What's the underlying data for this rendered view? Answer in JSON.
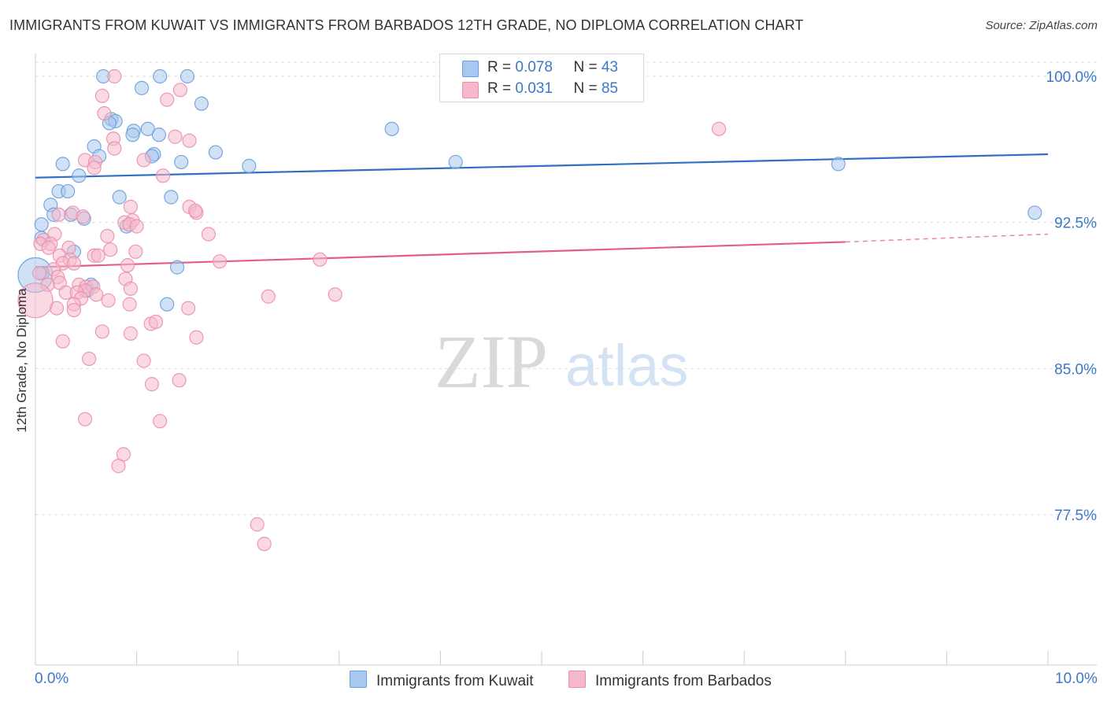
{
  "title": "IMMIGRANTS FROM KUWAIT VS IMMIGRANTS FROM BARBADOS 12TH GRADE, NO DIPLOMA CORRELATION CHART",
  "source": "Source: ZipAtlas.com",
  "watermark": {
    "zip": "ZIP",
    "atlas": "atlas"
  },
  "legend": {
    "kuwait": {
      "r_label": "R = ",
      "r_value": "0.078",
      "n_label": "N = ",
      "n_value": "43"
    },
    "barbados": {
      "r_label": "R = ",
      "r_value": "0.031",
      "n_label": "N = ",
      "n_value": "85"
    }
  },
  "colors": {
    "kuwait_fill": "#a9c8ef",
    "kuwait_stroke": "#6a9fdc",
    "kuwait_line": "#2f6fc4",
    "barbados_fill": "#f6b9cc",
    "barbados_stroke": "#ea8fac",
    "barbados_line": "#e0608b",
    "axis_label": "#3a78c9",
    "grid": "#dddddd"
  },
  "chart_data": {
    "type": "scatter",
    "xlabel": "",
    "ylabel": "12th Grade, No Diploma",
    "xlim": [
      0,
      10
    ],
    "ylim": [
      70.0,
      101.0
    ],
    "x_tick_labels": {
      "left": "0.0%",
      "right": "10.0%"
    },
    "y_ticks": [
      100.0,
      92.5,
      85.0,
      77.5
    ],
    "y_tick_labels": [
      "100.0%",
      "92.5%",
      "85.0%",
      "77.5%"
    ],
    "grid": true,
    "legend_position": "top-center",
    "series": [
      {
        "name": "Immigrants from Kuwait",
        "trend": {
          "x0": 0.0,
          "y0": 94.8,
          "x1": 10.0,
          "y1": 96.0
        },
        "points": [
          [
            0.67,
            100.0
          ],
          [
            1.23,
            100.0
          ],
          [
            1.5,
            100.0
          ],
          [
            1.05,
            99.4
          ],
          [
            1.64,
            98.6
          ],
          [
            0.75,
            97.8
          ],
          [
            0.79,
            97.7
          ],
          [
            0.73,
            97.6
          ],
          [
            0.97,
            97.2
          ],
          [
            1.11,
            97.3
          ],
          [
            0.96,
            97.0
          ],
          [
            1.22,
            97.0
          ],
          [
            3.52,
            97.3
          ],
          [
            0.58,
            96.4
          ],
          [
            1.78,
            96.1
          ],
          [
            0.63,
            95.9
          ],
          [
            1.17,
            96.0
          ],
          [
            1.15,
            95.9
          ],
          [
            0.27,
            95.5
          ],
          [
            1.44,
            95.6
          ],
          [
            2.11,
            95.4
          ],
          [
            4.15,
            95.6
          ],
          [
            7.93,
            95.5
          ],
          [
            0.43,
            94.9
          ],
          [
            0.23,
            94.1
          ],
          [
            0.32,
            94.1
          ],
          [
            0.15,
            93.4
          ],
          [
            0.83,
            93.8
          ],
          [
            1.34,
            93.8
          ],
          [
            0.18,
            92.9
          ],
          [
            0.35,
            92.9
          ],
          [
            0.48,
            92.7
          ],
          [
            9.87,
            93.0
          ],
          [
            0.06,
            92.4
          ],
          [
            0.9,
            92.3
          ],
          [
            0.06,
            91.7
          ],
          [
            0.38,
            91.0
          ],
          [
            1.4,
            90.2
          ],
          [
            0.07,
            89.9
          ],
          [
            0.55,
            89.3
          ],
          [
            0.51,
            89.0
          ],
          [
            1.3,
            88.3
          ],
          [
            0.0,
            89.8
          ]
        ]
      },
      {
        "name": "Immigrants from Barbados",
        "trend": {
          "x0": 0.0,
          "y0": 90.2,
          "x1": 8.0,
          "y1": 91.5
        },
        "trend_dashed": {
          "x0": 8.0,
          "y0": 91.5,
          "x1": 10.0,
          "y1": 91.9
        },
        "points": [
          [
            0.78,
            100.0
          ],
          [
            1.43,
            99.3
          ],
          [
            0.66,
            99.0
          ],
          [
            1.3,
            98.8
          ],
          [
            0.68,
            98.1
          ],
          [
            6.75,
            97.3
          ],
          [
            1.52,
            96.7
          ],
          [
            0.77,
            96.8
          ],
          [
            1.38,
            96.9
          ],
          [
            0.78,
            96.3
          ],
          [
            0.49,
            95.7
          ],
          [
            0.59,
            95.6
          ],
          [
            1.07,
            95.7
          ],
          [
            0.58,
            95.3
          ],
          [
            1.26,
            94.9
          ],
          [
            1.52,
            93.3
          ],
          [
            0.94,
            93.3
          ],
          [
            1.59,
            93.0
          ],
          [
            1.58,
            93.1
          ],
          [
            0.37,
            93.0
          ],
          [
            0.47,
            92.8
          ],
          [
            0.23,
            92.9
          ],
          [
            0.96,
            92.6
          ],
          [
            0.88,
            92.5
          ],
          [
            0.93,
            92.4
          ],
          [
            1.0,
            92.3
          ],
          [
            1.71,
            91.9
          ],
          [
            0.19,
            91.9
          ],
          [
            0.71,
            91.8
          ],
          [
            0.08,
            91.6
          ],
          [
            0.15,
            91.4
          ],
          [
            0.05,
            91.4
          ],
          [
            0.33,
            91.2
          ],
          [
            0.13,
            91.2
          ],
          [
            0.74,
            91.1
          ],
          [
            0.99,
            91.0
          ],
          [
            0.58,
            90.8
          ],
          [
            0.62,
            90.8
          ],
          [
            0.24,
            90.8
          ],
          [
            0.34,
            90.6
          ],
          [
            0.27,
            90.4
          ],
          [
            0.38,
            90.4
          ],
          [
            1.82,
            90.5
          ],
          [
            2.81,
            90.6
          ],
          [
            0.91,
            90.3
          ],
          [
            0.18,
            90.1
          ],
          [
            0.04,
            89.9
          ],
          [
            0.22,
            89.7
          ],
          [
            0.89,
            89.6
          ],
          [
            0.24,
            89.4
          ],
          [
            0.43,
            89.3
          ],
          [
            0.5,
            89.2
          ],
          [
            0.57,
            89.2
          ],
          [
            0.12,
            89.3
          ],
          [
            0.49,
            89.0
          ],
          [
            0.94,
            89.1
          ],
          [
            0.3,
            88.9
          ],
          [
            0.41,
            88.9
          ],
          [
            0.6,
            88.8
          ],
          [
            0.45,
            88.6
          ],
          [
            0.72,
            88.5
          ],
          [
            0.38,
            88.3
          ],
          [
            0.21,
            88.1
          ],
          [
            0.38,
            88.0
          ],
          [
            2.3,
            88.7
          ],
          [
            2.96,
            88.8
          ],
          [
            1.51,
            88.1
          ],
          [
            0.93,
            88.3
          ],
          [
            1.14,
            87.3
          ],
          [
            1.19,
            87.4
          ],
          [
            0.66,
            86.9
          ],
          [
            0.94,
            86.8
          ],
          [
            1.59,
            86.6
          ],
          [
            0.27,
            86.4
          ],
          [
            0.53,
            85.5
          ],
          [
            1.07,
            85.4
          ],
          [
            1.42,
            84.4
          ],
          [
            1.15,
            84.2
          ],
          [
            0.49,
            82.4
          ],
          [
            1.23,
            82.3
          ],
          [
            0.87,
            80.6
          ],
          [
            0.82,
            80.0
          ],
          [
            2.19,
            77.0
          ],
          [
            2.26,
            76.0
          ],
          [
            0.0,
            88.5
          ]
        ]
      }
    ]
  },
  "bottom_legend": {
    "kuwait": "Immigrants from Kuwait",
    "barbados": "Immigrants from Barbados"
  }
}
